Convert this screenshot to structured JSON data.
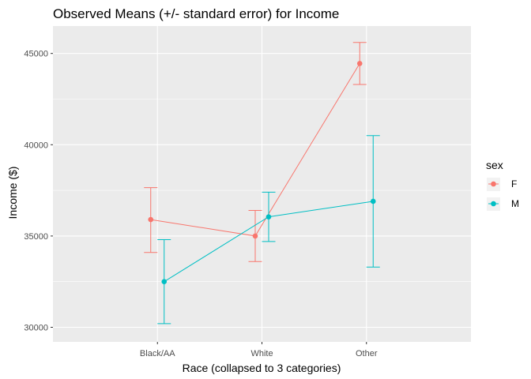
{
  "chart_data": {
    "type": "line",
    "title": "Observed Means (+/- standard error) for Income",
    "xlabel": "Race (collapsed to 3 categories)",
    "ylabel": "Income ($)",
    "categories": [
      "Black/AA",
      "White",
      "Other"
    ],
    "ylim": [
      29200,
      46500
    ],
    "yticks": [
      30000,
      35000,
      40000,
      45000
    ],
    "ytick_labels": [
      "30000",
      "35000",
      "40000",
      "45000"
    ],
    "grid": true,
    "legend": {
      "title": "sex",
      "position": "right"
    },
    "series": [
      {
        "name": "F",
        "color": "#F8766D",
        "values": [
          35900,
          35000,
          44450
        ],
        "lower": [
          34100,
          33600,
          43300
        ],
        "upper": [
          37650,
          36400,
          45600
        ]
      },
      {
        "name": "M",
        "color": "#00BFC4",
        "values": [
          32500,
          36050,
          36900
        ],
        "lower": [
          30200,
          34700,
          33300
        ],
        "upper": [
          34800,
          37400,
          40500
        ]
      }
    ]
  }
}
